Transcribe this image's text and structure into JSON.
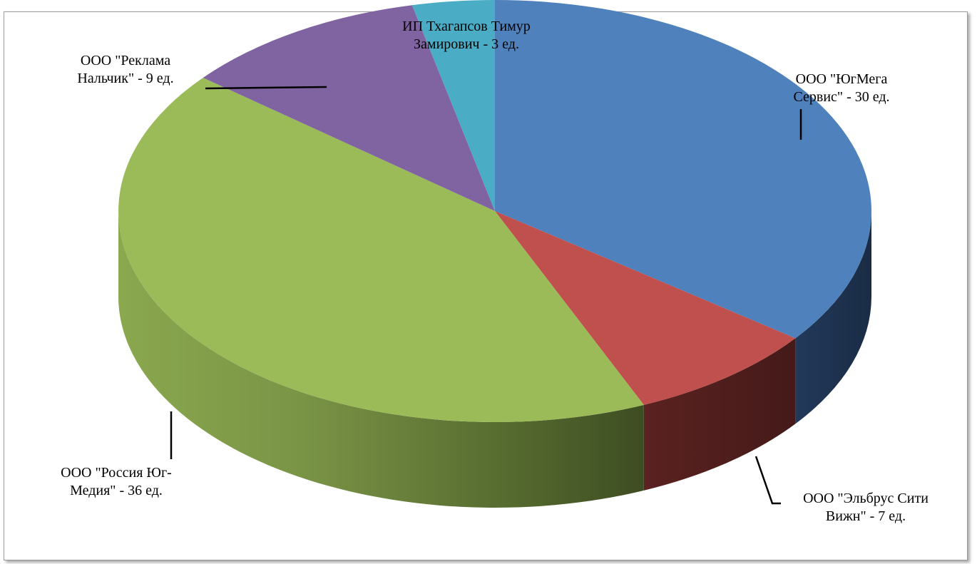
{
  "title_strip": "",
  "chart_data": {
    "type": "pie",
    "style": "3d",
    "title": "",
    "slices": [
      {
        "label_lines": [
          "ООО \"ЮгМега",
          "Сервис\" - 30 ед."
        ],
        "value": 30,
        "color": "#4f81bd",
        "side_color": "#203654"
      },
      {
        "label_lines": [
          "ООО \"Эльбрус Сити",
          "Вижн\" - 7 ед."
        ],
        "value": 7,
        "color": "#c0504d",
        "side_color": "#4f1e1e"
      },
      {
        "label_lines": [
          "ООО \"Россия Юг-",
          "Медия\" -  36 ед."
        ],
        "value": 36,
        "color": "#9bbb59",
        "side_color": "#6f8a3c"
      },
      {
        "label_lines": [
          "ООО \"Реклама",
          "Нальчик\" - 9 ед."
        ],
        "value": 9,
        "color": "#8064a2",
        "side_color": "#4a3a61"
      },
      {
        "label_lines": [
          "ИП Тхагапсов Тимур",
          "Замирович -  3 ед."
        ],
        "value": 3,
        "color": "#4bacc6",
        "side_color": "#2a6677"
      }
    ],
    "legend": "none",
    "labels": "outside-with-leader-lines"
  }
}
